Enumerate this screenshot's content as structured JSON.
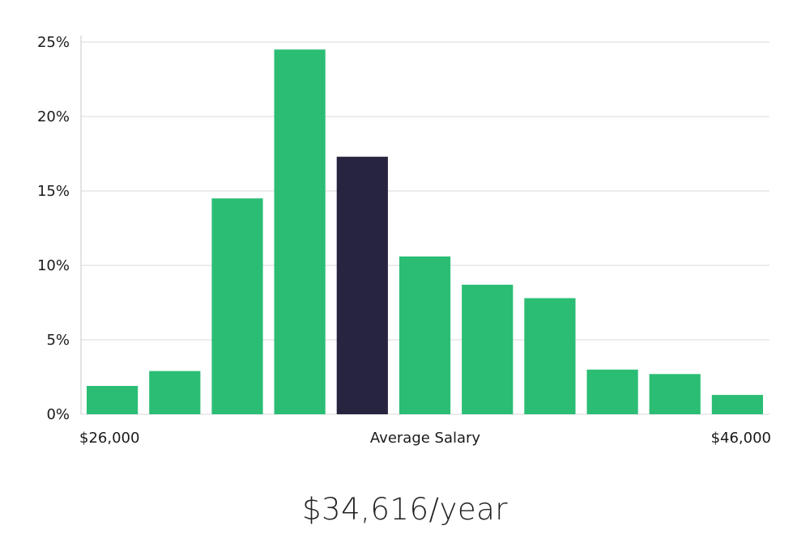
{
  "chart_data": {
    "type": "bar",
    "y_ticks": [
      "0%",
      "5%",
      "10%",
      "15%",
      "20%",
      "25%"
    ],
    "ylim": [
      0,
      25
    ],
    "grid": true,
    "values": [
      1.9,
      2.9,
      14.5,
      24.5,
      17.3,
      10.6,
      8.7,
      7.8,
      3.0,
      2.7,
      1.3
    ],
    "highlight_index": 4,
    "x_labels": {
      "left": "$26,000",
      "center": "Average Salary",
      "right": "$46,000"
    },
    "colors": {
      "bar": "#2bbd74",
      "highlight": "#27243f",
      "grid": "#d9d9d9"
    }
  },
  "salary_caption": "$34,616/year"
}
